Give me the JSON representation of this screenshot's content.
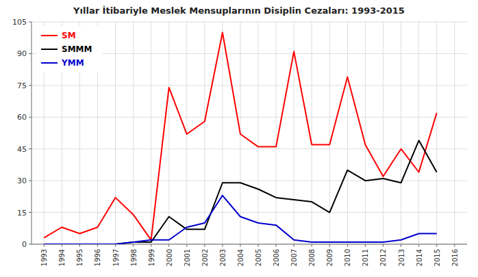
{
  "chart_data": {
    "type": "line",
    "title": "Yıllar İtibariyle Meslek Mensuplarının Disiplin Cezaları: 1993-2015",
    "x": [
      1993,
      1994,
      1995,
      1996,
      1997,
      1998,
      1999,
      2000,
      2001,
      2002,
      2003,
      2004,
      2005,
      2006,
      2007,
      2008,
      2009,
      2010,
      2011,
      2012,
      2013,
      2014,
      2015
    ],
    "series": [
      {
        "name": "SM",
        "color": "#ff0000",
        "values": [
          3,
          8,
          5,
          8,
          22,
          14,
          2,
          74,
          52,
          58,
          100,
          52,
          46,
          46,
          91,
          47,
          47,
          79,
          47,
          32,
          45,
          34,
          62
        ]
      },
      {
        "name": "SMMM",
        "color": "#000000",
        "values": [
          0,
          0,
          0,
          0,
          0,
          1,
          1,
          13,
          7,
          7,
          29,
          29,
          26,
          22,
          21,
          20,
          15,
          35,
          30,
          31,
          29,
          49,
          34
        ]
      },
      {
        "name": "YMM",
        "color": "#0000cd",
        "values": [
          0,
          0,
          0,
          0,
          0,
          1,
          2,
          2,
          8,
          10,
          23,
          13,
          10,
          9,
          2,
          1,
          1,
          1,
          1,
          1,
          2,
          5,
          5
        ]
      }
    ],
    "xlim": [
      1992.3,
      2016.7
    ],
    "xticks": [
      1993,
      1994,
      1995,
      1996,
      1997,
      1998,
      1999,
      2000,
      2001,
      2002,
      2003,
      2004,
      2005,
      2006,
      2007,
      2008,
      2009,
      2010,
      2011,
      2012,
      2013,
      2014,
      2015,
      2016
    ],
    "ylim": [
      0,
      105
    ],
    "yticks": [
      0,
      15,
      30,
      45,
      60,
      75,
      90,
      105
    ],
    "grid": true,
    "legend": "upper left"
  }
}
